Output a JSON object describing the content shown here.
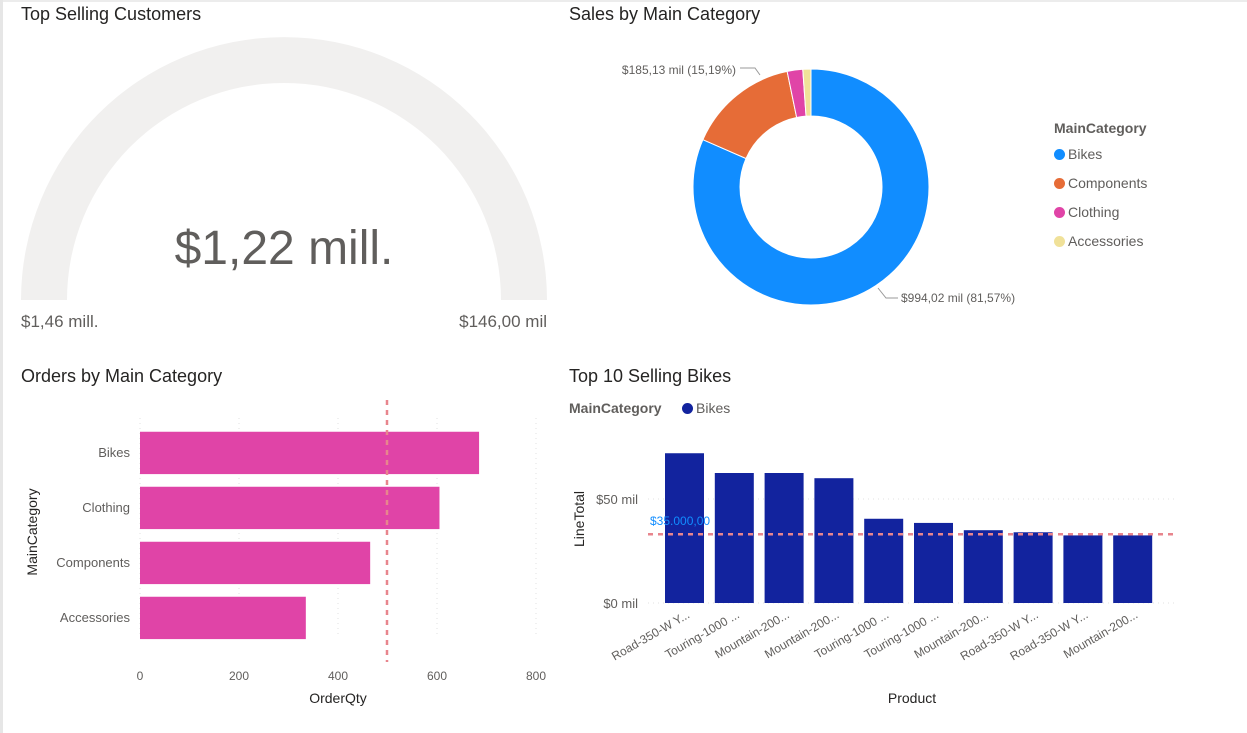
{
  "gauge": {
    "title": "Top Selling Customers",
    "value_label": "$1,22 mill.",
    "min_label": "$1,46 mill.",
    "max_label": "$146,00 mil",
    "colors": {
      "track": "#f1f0ef",
      "text": "#605e5c"
    }
  },
  "donut": {
    "title": "Sales by Main Category",
    "legend_title": "MainCategory",
    "label_components": "$185,13 mil (15,19%)",
    "label_bikes": "$994,02 mil (81,57%)"
  },
  "orders": {
    "title": "Orders by Main Category"
  },
  "bikes": {
    "title": "Top 10 Selling Bikes",
    "legend_title": "MainCategory",
    "legend_item": "Bikes",
    "ref_label": "$35.000,00"
  },
  "chart_data": [
    {
      "type": "gauge",
      "title": "Top Selling Customers",
      "value": 1.22,
      "value_label": "$1,22 mill.",
      "min_label": "$1,46 mill.",
      "max_label": "$146,00 mil"
    },
    {
      "type": "pie",
      "title": "Sales by Main Category",
      "legend_title": "MainCategory",
      "categories": [
        "Bikes",
        "Components",
        "Clothing",
        "Accessories"
      ],
      "values": [
        81.57,
        15.19,
        2.13,
        1.11
      ],
      "colors": [
        "#118dff",
        "#e66c37",
        "#e044a7",
        "#f0e199"
      ],
      "data_labels": [
        "$994,02 mil (81,57%)",
        "$185,13 mil (15,19%)",
        "",
        ""
      ]
    },
    {
      "type": "bar",
      "orientation": "horizontal",
      "title": "Orders by Main Category",
      "xlabel": "OrderQty",
      "ylabel": "MainCategory",
      "categories": [
        "Bikes",
        "Clothing",
        "Components",
        "Accessories"
      ],
      "values": [
        685,
        605,
        465,
        335
      ],
      "xlim": [
        0,
        800
      ],
      "xticks": [
        0,
        200,
        400,
        600,
        800
      ],
      "reference_line": 500,
      "color": "#e044a7"
    },
    {
      "type": "bar",
      "title": "Top 10 Selling Bikes",
      "xlabel": "Product",
      "ylabel": "LineTotal",
      "legend_title": "MainCategory",
      "series": [
        {
          "name": "Bikes",
          "values": [
            72000,
            62500,
            62500,
            60000,
            40500,
            38500,
            35000,
            34000,
            32500,
            32500
          ]
        }
      ],
      "categories": [
        "Road-350-W Y...",
        "Touring-1000 ...",
        "Mountain-200...",
        "Mountain-200...",
        "Touring-1000 ...",
        "Touring-1000 ...",
        "Mountain-200...",
        "Road-350-W Y...",
        "Road-350-W Y...",
        "Mountain-200..."
      ],
      "ylim": [
        0,
        75000
      ],
      "yticks": [
        0,
        50000
      ],
      "ytick_labels": [
        "$0 mil",
        "$50 mil"
      ],
      "reference_line": 35000,
      "reference_label": "$35.000,00",
      "color": "#12239e"
    }
  ]
}
